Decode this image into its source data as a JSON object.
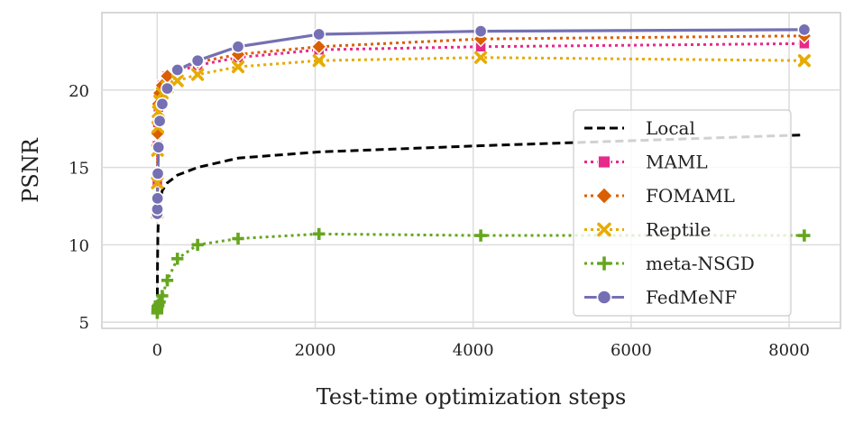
{
  "chart_data": {
    "type": "line",
    "title": "",
    "xlabel": "Test-time optimization steps",
    "ylabel": "PSNR",
    "xlim": [
      -700,
      8650
    ],
    "ylim": [
      4.6,
      25
    ],
    "xticks": [
      0,
      2000,
      4000,
      6000,
      8000
    ],
    "yticks": [
      5,
      10,
      15,
      20
    ],
    "xtick_labels": [
      "0",
      "2000",
      "4000",
      "6000",
      "8000"
    ],
    "ytick_labels": [
      "5",
      "10",
      "15",
      "20"
    ],
    "grid": true,
    "legend_position": "center-right",
    "series": [
      {
        "name": "Local",
        "color": "#000000",
        "linestyle": "dashed",
        "marker": "none",
        "x": [
          1,
          2,
          4,
          8,
          16,
          32,
          64,
          128,
          256,
          512,
          1024,
          2048,
          4096,
          8192
        ],
        "y": [
          5.9,
          7.0,
          8.8,
          10.5,
          11.9,
          12.8,
          13.5,
          14.0,
          14.5,
          15.0,
          15.6,
          16.0,
          16.4,
          17.1
        ]
      },
      {
        "name": "MAML",
        "color": "#e7298a",
        "linestyle": "dotted",
        "marker": "square",
        "x": [
          1,
          2,
          4,
          8,
          16,
          32,
          64,
          128,
          256,
          512,
          1024,
          2048,
          4096,
          8192
        ],
        "y": [
          12.2,
          14.1,
          16.4,
          17.9,
          18.9,
          19.6,
          20.3,
          20.9,
          21.2,
          21.6,
          22.1,
          22.6,
          22.8,
          23.0
        ]
      },
      {
        "name": "FOMAML",
        "color": "#d95f02",
        "linestyle": "dotted",
        "marker": "diamond",
        "x": [
          1,
          2,
          4,
          8,
          16,
          32,
          64,
          128,
          256,
          512,
          1024,
          2048,
          4096,
          8192
        ],
        "y": [
          12.0,
          14.6,
          17.2,
          18.3,
          19.1,
          19.8,
          20.3,
          20.9,
          21.3,
          21.8,
          22.3,
          22.8,
          23.3,
          23.5
        ]
      },
      {
        "name": "Reptile",
        "color": "#e6ab02",
        "linestyle": "dotted",
        "marker": "x",
        "x": [
          1,
          2,
          4,
          8,
          16,
          32,
          64,
          128,
          256,
          512,
          1024,
          2048,
          4096,
          8192
        ],
        "y": [
          12.1,
          14.0,
          16.1,
          17.6,
          18.6,
          19.3,
          19.8,
          20.2,
          20.6,
          21.0,
          21.5,
          21.9,
          22.1,
          21.9
        ]
      },
      {
        "name": "meta-NSGD",
        "color": "#66a61e",
        "linestyle": "dotted",
        "marker": "plus",
        "x": [
          1,
          2,
          4,
          8,
          16,
          32,
          64,
          128,
          256,
          512,
          1024,
          2048,
          4096,
          8192
        ],
        "y": [
          5.6,
          5.8,
          6.0,
          6.0,
          6.1,
          6.3,
          6.7,
          7.7,
          9.1,
          10.0,
          10.4,
          10.7,
          10.6,
          10.6
        ]
      },
      {
        "name": "FedMeNF",
        "color": "#7570b3",
        "linestyle": "solid",
        "marker": "circle",
        "x": [
          1,
          2,
          4,
          8,
          16,
          32,
          64,
          128,
          256,
          512,
          1024,
          2048,
          4096,
          8192
        ],
        "y": [
          12.0,
          12.3,
          13.0,
          14.6,
          16.3,
          18.0,
          19.1,
          20.1,
          21.3,
          21.9,
          22.8,
          23.6,
          23.8,
          23.9
        ]
      }
    ]
  }
}
